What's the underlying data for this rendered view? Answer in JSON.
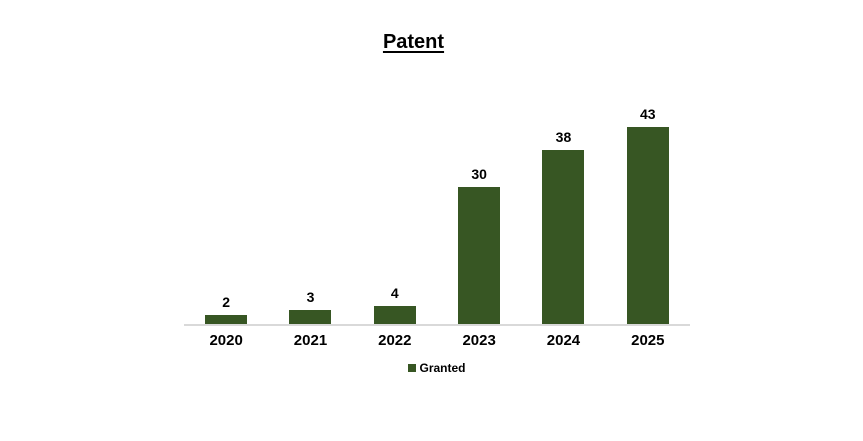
{
  "chart_data": {
    "type": "bar",
    "title": "Patent",
    "categories": [
      "2020",
      "2021",
      "2022",
      "2023",
      "2024",
      "2025"
    ],
    "series": [
      {
        "name": "Granted",
        "values": [
          2,
          3,
          4,
          30,
          38,
          43
        ]
      }
    ],
    "xlabel": "",
    "ylabel": "",
    "ylim": [
      0,
      45
    ],
    "grid": false,
    "data_labels": true,
    "legend_position": "bottom",
    "colors": {
      "bar": "#375623",
      "axis_line": "#d9d9d9",
      "text": "#000000",
      "background": "#ffffff"
    }
  }
}
